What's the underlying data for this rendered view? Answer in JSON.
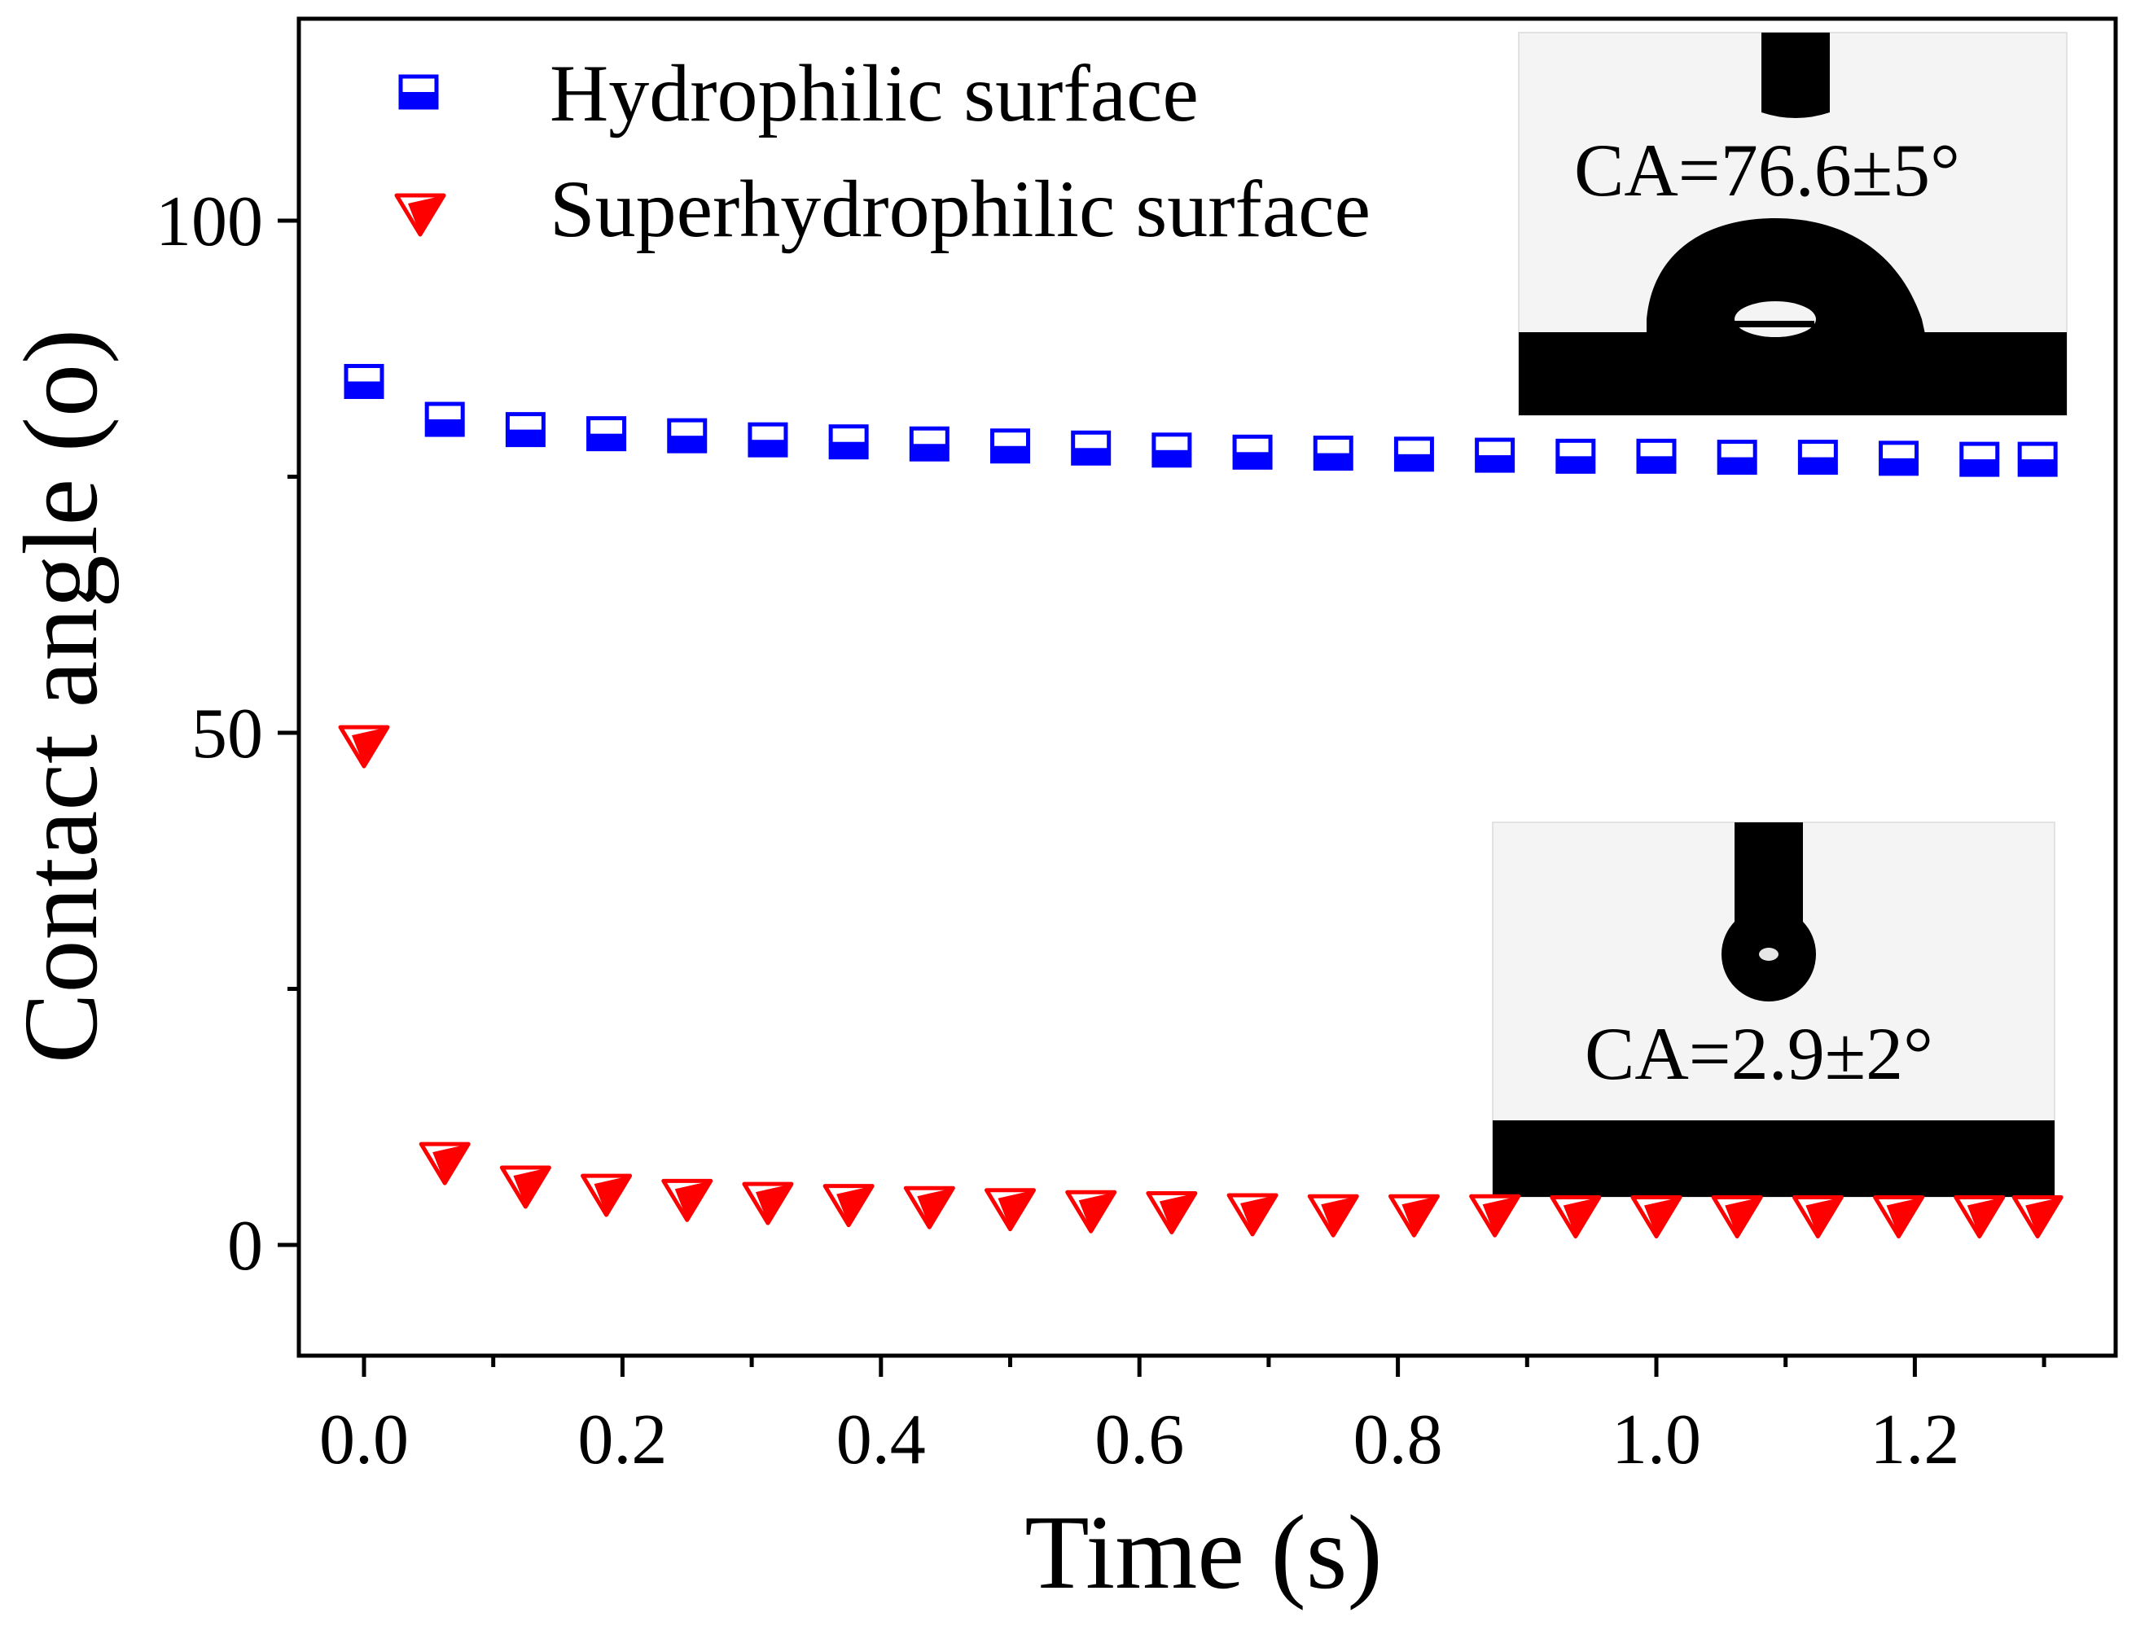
{
  "chart_data": {
    "type": "scatter",
    "title": "",
    "xlabel": "Time (s)",
    "ylabel": "Contact angle (o)",
    "xlim": [
      -0.07,
      1.315
    ],
    "ylim": [
      -10,
      120
    ],
    "x_ticks": [
      {
        "value": 0.0,
        "label": "0.0"
      },
      {
        "value": 0.2,
        "label": "0.2"
      },
      {
        "value": 0.4,
        "label": "0.4"
      },
      {
        "value": 0.6,
        "label": "0.6"
      },
      {
        "value": 0.8,
        "label": "0.8"
      },
      {
        "value": 1.0,
        "label": "1.0"
      },
      {
        "value": 1.2,
        "label": "1.2"
      }
    ],
    "x_minor_ticks": [
      0.1,
      0.3,
      0.5,
      0.7,
      0.9,
      1.1,
      1.3
    ],
    "y_ticks": [
      {
        "value": 0,
        "label": "0"
      },
      {
        "value": 50,
        "label": "50"
      },
      {
        "value": 100,
        "label": "100"
      }
    ],
    "y_minor_ticks": [
      25,
      75
    ],
    "grid": false,
    "legend_position": "top-left",
    "series": [
      {
        "name": "Hydrophilic surface",
        "marker": "half-filled-square",
        "color": "#0000ff",
        "x": [
          0.0,
          0.0625,
          0.125,
          0.1875,
          0.25,
          0.3125,
          0.375,
          0.4375,
          0.5,
          0.5625,
          0.625,
          0.6875,
          0.75,
          0.8125,
          0.875,
          0.9375,
          1.0,
          1.0625,
          1.125,
          1.1875,
          1.25,
          1.295
        ],
        "y": [
          84.3,
          80.6,
          79.6,
          79.2,
          79.0,
          78.6,
          78.4,
          78.2,
          78.0,
          77.8,
          77.6,
          77.4,
          77.3,
          77.2,
          77.1,
          77.0,
          77.0,
          76.9,
          76.9,
          76.8,
          76.7,
          76.7
        ]
      },
      {
        "name": "Superhydrophilic surface",
        "marker": "half-filled-down-triangle",
        "color": "#ff0000",
        "x": [
          0.0,
          0.0625,
          0.125,
          0.1875,
          0.25,
          0.3125,
          0.375,
          0.4375,
          0.5,
          0.5625,
          0.625,
          0.6875,
          0.75,
          0.8125,
          0.875,
          0.9375,
          1.0,
          1.0625,
          1.125,
          1.1875,
          1.25,
          1.295
        ],
        "y": [
          48.8,
          8.1,
          5.8,
          5.0,
          4.5,
          4.2,
          4.0,
          3.8,
          3.6,
          3.4,
          3.3,
          3.1,
          3.0,
          3.0,
          3.0,
          2.9,
          2.9,
          2.9,
          2.9,
          2.9,
          2.9,
          2.9
        ]
      }
    ],
    "insets": [
      {
        "name": "hydrophilic-droplet-photo",
        "annotation": "CA=76.6±5°"
      },
      {
        "name": "superhydrophilic-droplet-photo",
        "annotation": "CA=2.9±2°"
      }
    ]
  }
}
